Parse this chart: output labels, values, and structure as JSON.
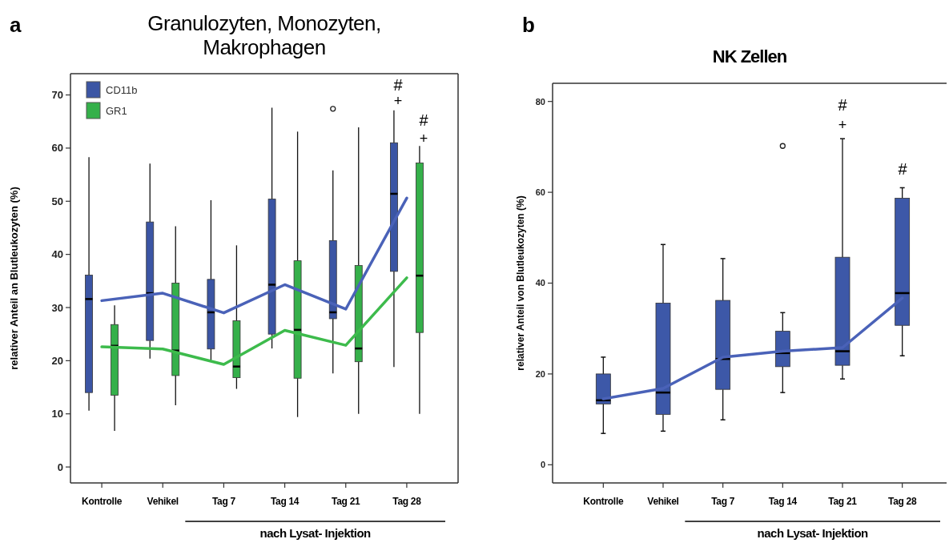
{
  "chart_data": [
    {
      "type": "box",
      "title": "Granulozyten, Monozyten, Makrophagen",
      "ylabel": "relativer Anteil an Blutleukozyten (%)",
      "xlabel": "nach Lysat- Injektion",
      "categories": [
        "Kontrolle",
        "Vehikel",
        "Tag 7",
        "Tag 14",
        "Tag 21",
        "Tag 28"
      ],
      "ylim": [
        -3,
        74
      ],
      "yticks": [
        0,
        10,
        20,
        30,
        40,
        50,
        60,
        70
      ],
      "legend": "top left",
      "grid": false,
      "series": [
        {
          "name": "CD11b",
          "color": "#3b55a4",
          "boxes": [
            {
              "low": 10.6,
              "q1": 14,
              "median": 31.6,
              "q3": 36.1,
              "high": 58.3
            },
            {
              "low": 20.4,
              "q1": 23.8,
              "median": 32.7,
              "q3": 46.1,
              "high": 57.1
            },
            {
              "low": 20,
              "q1": 22.2,
              "median": 29.1,
              "q3": 35.3,
              "high": 50.2
            },
            {
              "low": 22.3,
              "q1": 25,
              "median": 34.3,
              "q3": 50.4,
              "high": 67.6
            },
            {
              "low": 17.6,
              "q1": 27.9,
              "median": 29.1,
              "q3": 42.6,
              "high": 55.8,
              "outliers": [
                67.4
              ]
            },
            {
              "low": 18.8,
              "q1": 36.8,
              "median": 51.4,
              "q3": 61,
              "high": 67.1
            }
          ]
        },
        {
          "name": "GR1",
          "color": "#35b04a",
          "boxes": [
            {
              "low": 6.8,
              "q1": 13.5,
              "median": 22.8,
              "q3": 26.8,
              "high": 30.4
            },
            {
              "low": 11.6,
              "q1": 17.2,
              "median": 21.9,
              "q3": 34.6,
              "high": 45.3
            },
            {
              "low": 14.7,
              "q1": 16.8,
              "median": 18.9,
              "q3": 27.5,
              "high": 41.7
            },
            {
              "low": 9.4,
              "q1": 16.7,
              "median": 25.8,
              "q3": 38.8,
              "high": 63.1
            },
            {
              "low": 10,
              "q1": 19.8,
              "median": 22.3,
              "q3": 37.9,
              "high": 63.9
            },
            {
              "low": 10,
              "q1": 25.3,
              "median": 36,
              "q3": 57.2,
              "high": 60.4
            }
          ]
        },
        {
          "type": "line",
          "color": "#4a62b8",
          "values": [
            31.3,
            32.7,
            29,
            34.3,
            29.7,
            50.6
          ]
        },
        {
          "type": "line",
          "color": "#3dbb4c",
          "values": [
            22.6,
            22.2,
            19.3,
            25.7,
            22.9,
            35.6
          ]
        }
      ],
      "annotations": [
        "a",
        "#",
        "+",
        "#",
        "+"
      ]
    },
    {
      "type": "box",
      "title": "NK Zellen",
      "ylabel": "relativer Anteil von Blutleukozyten (%)",
      "xlabel": "nach Lysat- Injektion",
      "categories": [
        "Kontrolle",
        "Vehikel",
        "Tag 7",
        "Tag 14",
        "Tag 21",
        "Tag 28"
      ],
      "ylim": [
        -4,
        84
      ],
      "yticks": [
        0,
        20,
        40,
        60,
        80
      ],
      "grid": false,
      "series": [
        {
          "color": "#3d58a8",
          "boxes": [
            {
              "low": 6.9,
              "q1": 13.4,
              "median": 14.2,
              "q3": 20,
              "high": 23.7
            },
            {
              "low": 7.4,
              "q1": 11.1,
              "median": 15.9,
              "q3": 35.6,
              "high": 48.5
            },
            {
              "low": 9.9,
              "q1": 16.6,
              "median": 23.3,
              "q3": 36.2,
              "high": 45.4
            },
            {
              "low": 15.9,
              "q1": 21.6,
              "median": 24.6,
              "q3": 29.4,
              "high": 33.5,
              "outliers": [
                70.2
              ]
            },
            {
              "low": 18.9,
              "q1": 21.9,
              "median": 25,
              "q3": 45.7,
              "high": 71.8
            },
            {
              "low": 24,
              "q1": 30.7,
              "median": 37.8,
              "q3": 58.7,
              "high": 61
            }
          ]
        },
        {
          "type": "line",
          "color": "#4a62b8",
          "values": [
            14.5,
            16.8,
            23.7,
            25,
            25.8,
            36.7
          ]
        }
      ],
      "annotations": [
        "b",
        "#",
        "+",
        "#"
      ]
    }
  ]
}
